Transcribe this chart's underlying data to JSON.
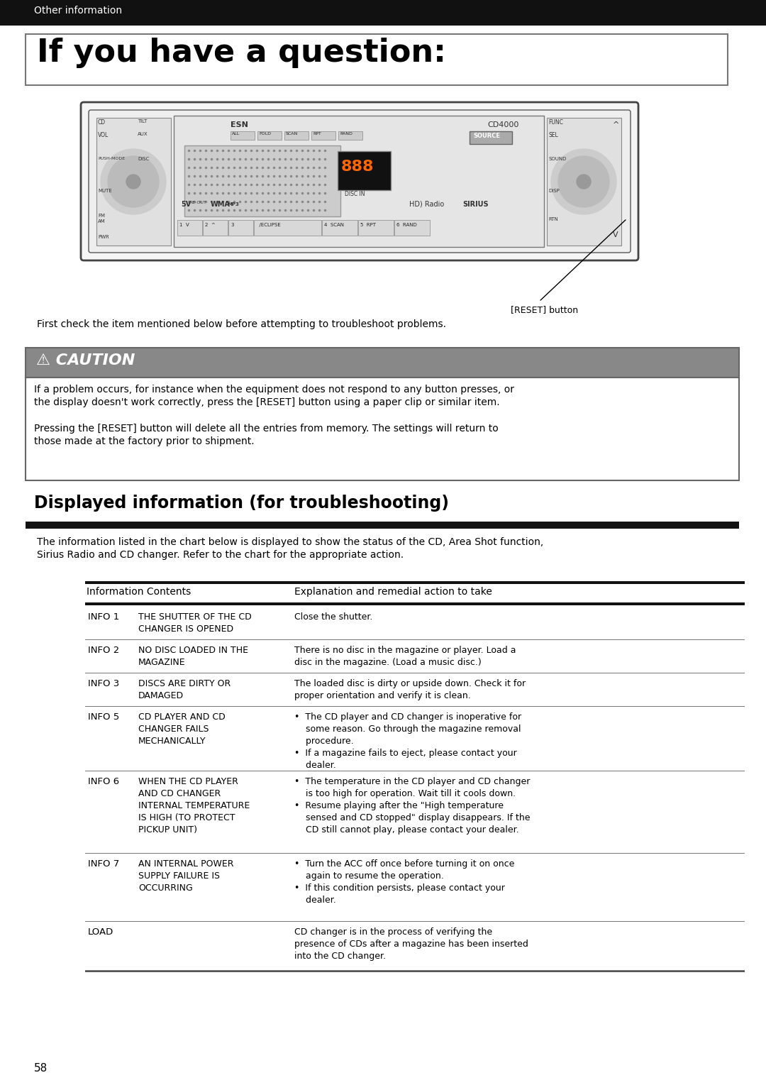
{
  "page_bg": "#ffffff",
  "header_bg": "#111111",
  "header_text": "Other information",
  "header_text_color": "#ffffff",
  "title_box_text": "If you have a question:",
  "reset_caption": "[RESET] button",
  "first_check_text": "First check the item mentioned below before attempting to troubleshoot problems.",
  "caution_header_bg": "#888888",
  "caution_header_text": "⚠ CAUTION",
  "caution_text1": "If a problem occurs, for instance when the equipment does not respond to any button presses, or\nthe display doesn't work correctly, press the [RESET] button using a paper clip or similar item.",
  "caution_text2": "Pressing the [RESET] button will delete all the entries from memory. The settings will return to\nthose made at the factory prior to shipment.",
  "section_title": "Displayed information (for troubleshooting)",
  "section_bar_color": "#111111",
  "section_intro": "The information listed in the chart below is displayed to show the status of the CD, Area Shot function,\nSirius Radio and CD changer. Refer to the chart for the appropriate action.",
  "table_header_col1": "Information Contents",
  "table_header_col2": "Explanation and remedial action to take",
  "table_rows": [
    {
      "col1_label": "INFO 1",
      "col1_desc": "THE SHUTTER OF THE CD\nCHANGER IS OPENED",
      "col2": "Close the shutter."
    },
    {
      "col1_label": "INFO 2",
      "col1_desc": "NO DISC LOADED IN THE\nMAGAZINE",
      "col2": "There is no disc in the magazine or player. Load a\ndisc in the magazine. (Load a music disc.)"
    },
    {
      "col1_label": "INFO 3",
      "col1_desc": "DISCS ARE DIRTY OR\nDAMAGED",
      "col2": "The loaded disc is dirty or upside down. Check it for\nproper orientation and verify it is clean."
    },
    {
      "col1_label": "INFO 5",
      "col1_desc": "CD PLAYER AND CD\nCHANGER FAILS\nMECHANICALLY",
      "col2": "•  The CD player and CD changer is inoperative for\n    some reason. Go through the magazine removal\n    procedure.\n•  If a magazine fails to eject, please contact your\n    dealer."
    },
    {
      "col1_label": "INFO 6",
      "col1_desc": "WHEN THE CD PLAYER\nAND CD CHANGER\nINTERNAL TEMPERATURE\nIS HIGH (TO PROTECT\nPICKUP UNIT)",
      "col2": "•  The temperature in the CD player and CD changer\n    is too high for operation. Wait till it cools down.\n•  Resume playing after the \"High temperature\n    sensed and CD stopped\" display disappears. If the\n    CD still cannot play, please contact your dealer."
    },
    {
      "col1_label": "INFO 7",
      "col1_desc": "AN INTERNAL POWER\nSUPPLY FAILURE IS\nOCCURRING",
      "col2": "•  Turn the ACC off once before turning it on once\n    again to resume the operation.\n•  If this condition persists, please contact your\n    dealer."
    },
    {
      "col1_label": "LOAD",
      "col1_desc": "",
      "col2": "CD changer is in the process of verifying the\npresence of CDs after a magazine has been inserted\ninto the CD changer."
    }
  ],
  "page_number": "58"
}
